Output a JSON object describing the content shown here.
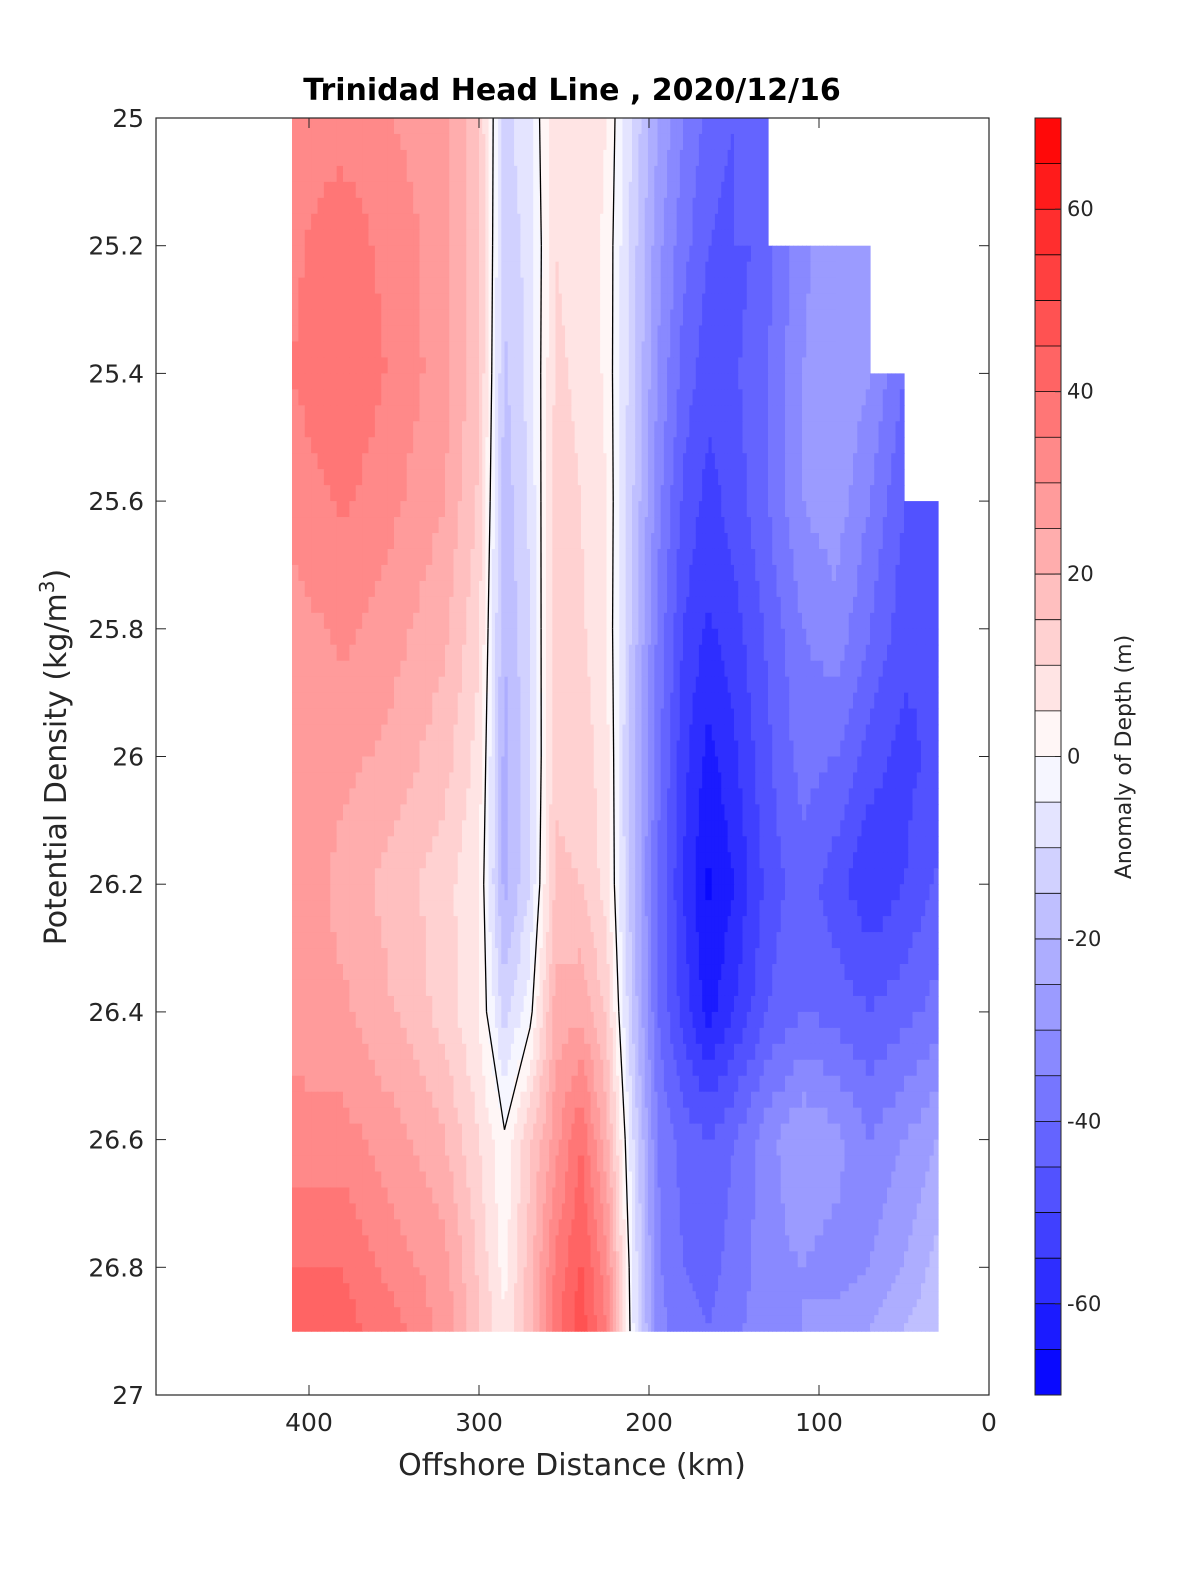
{
  "chart_data": {
    "type": "heatmap",
    "subtype": "filled-contour",
    "title": "Trinidad Head Line , 2020/12/16",
    "xlabel": "Offshore Distance (km)",
    "ylabel_main": "Potential Density (kg/m",
    "ylabel_sup": "3",
    "ylabel_close": ")",
    "colorbar_label": "Anomaly of Depth (m)",
    "xlim": [
      490,
      0
    ],
    "ylim": [
      27,
      25
    ],
    "y_reversed": true,
    "x_reversed": true,
    "x_ticks": [
      400,
      300,
      200,
      100,
      0
    ],
    "x_tick_labels": [
      "400",
      "300",
      "200",
      "100",
      "0"
    ],
    "y_ticks": [
      25,
      25.2,
      25.4,
      25.6,
      25.8,
      26,
      26.2,
      26.4,
      26.6,
      26.8,
      27
    ],
    "y_tick_labels": [
      "25",
      "25.2",
      "25.4",
      "25.6",
      "25.8",
      "26",
      "26.2",
      "26.4",
      "26.6",
      "26.8",
      "27"
    ],
    "colorbar_ticks": [
      60,
      40,
      20,
      0,
      -20,
      -40,
      -60
    ],
    "colorbar_tick_labels": [
      "60",
      "40",
      "20",
      "0",
      "-20",
      "-40",
      "-60"
    ],
    "clim": [
      -70,
      70
    ],
    "contour_level_step": 5,
    "colormap": {
      "low": "#0000ff",
      "mid": "#ffffff",
      "high": "#ff0000"
    },
    "zero_contour_color": "#000000",
    "distance_km": [
      410,
      380,
      350,
      320,
      300,
      285,
      270,
      255,
      240,
      225,
      210,
      195,
      180,
      165,
      150,
      130,
      110,
      90,
      70,
      50,
      30
    ],
    "density_levels": [
      25.0,
      25.2,
      25.4,
      25.6,
      25.8,
      26.0,
      26.2,
      26.4,
      26.6,
      26.8,
      26.9
    ],
    "anomaly_m": [
      [
        33,
        33,
        30,
        27,
        15,
        -12,
        -6,
        10,
        8,
        5,
        -10,
        -25,
        -35,
        -42,
        -45,
        null,
        null,
        null,
        null,
        null,
        null
      ],
      [
        34,
        38,
        33,
        27,
        16,
        -14,
        -8,
        10,
        8,
        4,
        -12,
        -28,
        -38,
        -45,
        -48,
        -42,
        -32,
        -25,
        null,
        null,
        null
      ],
      [
        35,
        40,
        34,
        27,
        16,
        -16,
        -8,
        11,
        9,
        4,
        -13,
        -30,
        -42,
        -48,
        -46,
        -40,
        -30,
        -25,
        -30,
        -40,
        null
      ],
      [
        32,
        36,
        31,
        25,
        14,
        -18,
        -9,
        12,
        10,
        5,
        -14,
        -33,
        -46,
        -52,
        -48,
        -40,
        -30,
        -27,
        -35,
        -45,
        null
      ],
      [
        28,
        31,
        27,
        21,
        11,
        -20,
        -10,
        13,
        11,
        5,
        -16,
        -36,
        -50,
        -56,
        -52,
        -44,
        -35,
        -32,
        -40,
        -48,
        -50
      ],
      [
        26,
        27,
        23,
        17,
        8,
        -22,
        -11,
        14,
        13,
        7,
        -18,
        -38,
        -53,
        -62,
        -56,
        -46,
        -38,
        -40,
        -48,
        -52,
        -48
      ],
      [
        30,
        23,
        18,
        12,
        5,
        -22,
        -10,
        16,
        15,
        8,
        -18,
        -40,
        -55,
        -66,
        -60,
        -48,
        -42,
        -48,
        -54,
        -50,
        -44
      ],
      [
        28,
        26,
        20,
        13,
        5,
        -12,
        -2,
        22,
        24,
        14,
        -15,
        -40,
        -52,
        -62,
        -55,
        -45,
        -40,
        -42,
        -45,
        -42,
        -38
      ],
      [
        32,
        32,
        27,
        20,
        10,
        1,
        14,
        28,
        40,
        22,
        -8,
        -35,
        -42,
        -45,
        -40,
        -32,
        -25,
        -28,
        -35,
        -30,
        -25
      ],
      [
        40,
        40,
        33,
        27,
        14,
        3,
        18,
        36,
        46,
        32,
        -4,
        -34,
        -40,
        -42,
        -38,
        -32,
        -30,
        -32,
        -30,
        -25,
        -18
      ],
      [
        44,
        42,
        37,
        28,
        15,
        6,
        18,
        38,
        48,
        35,
        -3,
        -33,
        -38,
        -40,
        -36,
        -32,
        -30,
        -28,
        -25,
        -20,
        -15
      ]
    ]
  }
}
